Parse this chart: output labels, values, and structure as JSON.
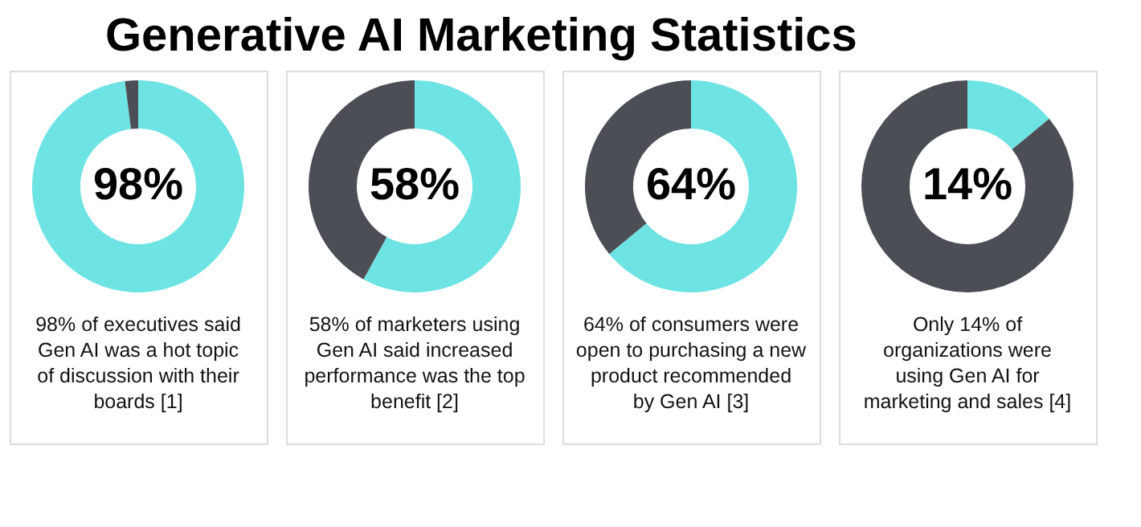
{
  "chart_data": [
    {
      "type": "donut",
      "title": "Generative AI Marketing Statistics",
      "categories": [
        null,
        null
      ],
      "values": [
        98,
        2
      ],
      "colors": [
        "#6ee3e3",
        "#4b4f55"
      ],
      "value_labels": [
        "98%",
        null
      ],
      "annotations": [
        "98% of executives said\nGen AI was a hot topic\nof discussion with their\nboards [1]"
      ]
    },
    {
      "type": "donut",
      "categories": [
        null,
        null
      ],
      "values": [
        58,
        42
      ],
      "colors": [
        "#6ee3e3",
        "#4b4f55"
      ],
      "value_labels": [
        "58%",
        null
      ],
      "annotations": [
        "58% of marketers using\nGen AI said increased\nperformance was the top\nbenefit [2]"
      ]
    },
    {
      "type": "donut",
      "categories": [
        null,
        null
      ],
      "values": [
        64,
        36
      ],
      "colors": [
        "#6ee3e3",
        "#4b4f55"
      ],
      "value_labels": [
        "64%",
        null
      ],
      "annotations": [
        "64% of consumers were\nopen to purchasing a new\nproduct recommended\nby Gen AI [3]"
      ]
    },
    {
      "type": "donut",
      "categories": [
        null,
        null
      ],
      "values": [
        14,
        86
      ],
      "colors": [
        "#6ee3e3",
        "#4b4f55"
      ],
      "value_labels": [
        "14%",
        null
      ],
      "annotations": [
        "Only 14% of\norganizations were\nusing Gen AI for\nmarketing and sales [4]"
      ]
    }
  ]
}
